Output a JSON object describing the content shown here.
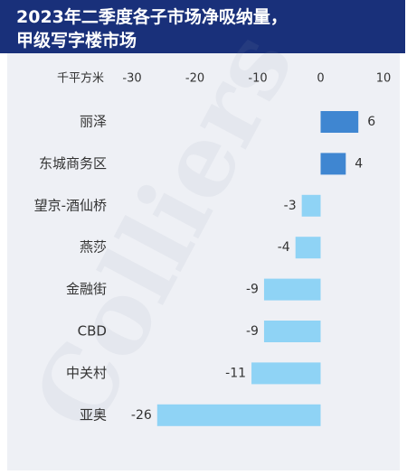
{
  "title": {
    "line1": "2023年二季度各子市场净吸纳量，",
    "line2": "甲级写字楼市场"
  },
  "watermark": "Colliers",
  "colors": {
    "header": "#19307a",
    "panel": "#eef0f5",
    "positive_bar": "#3f86d1",
    "negative_bar": "#8fd3f5"
  },
  "chart_data": {
    "type": "bar",
    "orientation": "horizontal",
    "unit_label": "千平方米",
    "xlim": [
      -30,
      10
    ],
    "xticks": [
      -30,
      -20,
      -10,
      0,
      10
    ],
    "x_axis_position": "top",
    "grid": false,
    "categories": [
      "丽泽",
      "东城商务区",
      "望京-酒仙桥",
      "燕莎",
      "金融街",
      "CBD",
      "中关村",
      "亚奥"
    ],
    "values": [
      6,
      4,
      -3,
      -4,
      -9,
      -9,
      -11,
      -26
    ],
    "data_labels": [
      "6",
      "4",
      "-3",
      "-4",
      "-9",
      "-9",
      "-11",
      "-26"
    ]
  }
}
